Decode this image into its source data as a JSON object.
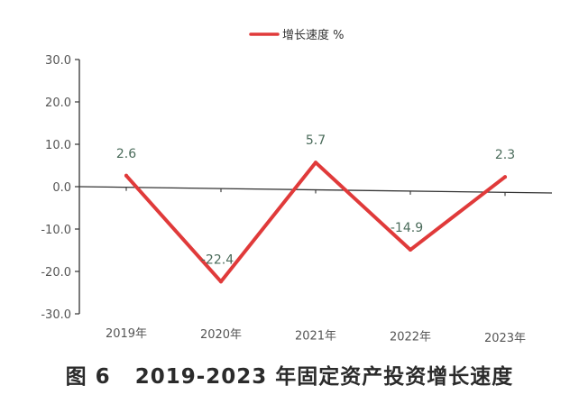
{
  "chart_data": {
    "type": "line",
    "title": "",
    "xlabel": "",
    "ylabel": "",
    "categories": [
      "2019年",
      "2020年",
      "2021年",
      "2022年",
      "2023年"
    ],
    "series": [
      {
        "name": "增长速度 %",
        "values": [
          2.6,
          -22.4,
          5.7,
          -14.9,
          2.3
        ],
        "color": "#e03a3a"
      }
    ],
    "data_labels": [
      "2.6",
      "-22.4",
      "5.7",
      "-14.9",
      "2.3"
    ],
    "y_ticks": [
      "30.0",
      "20.0",
      "10.0",
      "0.0",
      "-10.0",
      "-20.0",
      "-30.0"
    ],
    "ylim": [
      -30,
      30
    ],
    "grid": false,
    "legend_position": "top-center"
  },
  "caption": {
    "figure_label": "图 6",
    "text": "2019-2023 年固定资产投资增长速度"
  },
  "colors": {
    "line": "#e03a3a",
    "axis": "#333333",
    "label_text": "#4a6b5a",
    "tick_text": "#555555"
  }
}
